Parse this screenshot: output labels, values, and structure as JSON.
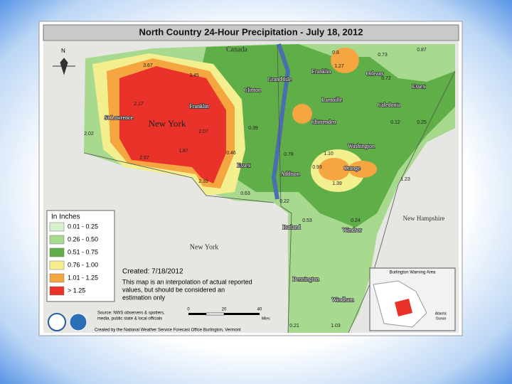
{
  "title": "North Country 24-Hour Precipitation - July 18, 2012",
  "compass": "N",
  "country_label": "Canada",
  "state_labels": [
    "New York",
    "New York",
    "New Hampshire"
  ],
  "place_labels": [
    "St Lawrence",
    "Franklin",
    "Clinton",
    "Essex",
    "Grand Isle",
    "Franklin",
    "Orleans",
    "Essex",
    "Lamoille",
    "Caledonia",
    "Chittenden",
    "Washington",
    "Addison",
    "Orange",
    "Rutland",
    "Windsor",
    "Bennington",
    "Windham"
  ],
  "amounts": [
    "3.67",
    "3.45",
    "2.17",
    "2.02",
    "2.57",
    "1.87",
    "2.07",
    "2.39",
    "0.46",
    "0.39",
    "0.63",
    "0.8",
    "1.27",
    "0.73",
    "0.87",
    "0.72",
    "1.10",
    "1.39",
    "0.22",
    "0.21",
    "1.03",
    "0.25",
    "0.78",
    "0.93",
    "0.24",
    "0.12",
    "1.23",
    "0.53"
  ],
  "legend": {
    "title": "In Inches",
    "items": [
      {
        "label": "0.01 - 0.25",
        "color": "#d6efcf"
      },
      {
        "label": "0.26 - 0.50",
        "color": "#a7d98f"
      },
      {
        "label": "0.51 - 0.75",
        "color": "#5fae48"
      },
      {
        "label": "0.76 - 1.00",
        "color": "#f3ef8e"
      },
      {
        "label": "1.01 - 1.25",
        "color": "#f5a641"
      },
      {
        "label": "> 1.25",
        "color": "#e8322a"
      }
    ]
  },
  "created": "Created: 7/18/2012",
  "note": [
    "This map is an interpolation of actual reported",
    "values, but should be considered an",
    "estimation only"
  ],
  "source": [
    "Source: NWS observers & spotters,",
    "media, public state & local officials"
  ],
  "credit": "Created by the National Weather Service Forecast Office Burlington, Vermont",
  "scale": {
    "ticks": [
      "0",
      "20",
      "40"
    ],
    "unit": "Miles"
  },
  "inset": {
    "title": "Burlington Warning Area",
    "label": [
      "Atlantic",
      "Ocean"
    ]
  }
}
